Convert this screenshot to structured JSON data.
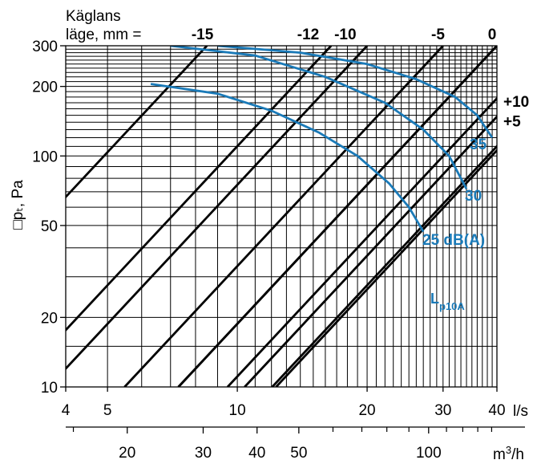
{
  "chart_data": {
    "type": "line",
    "axis_scale": "log-log",
    "grid": true,
    "header_label_line1": "Käglans",
    "header_label_line2": "läge, mm =",
    "ylabel": "□pₜ, Pa",
    "xunit_top": "l/s",
    "xunit_bottom": "m³/h",
    "y_range": [
      10,
      300
    ],
    "x_range_ls": [
      4,
      40
    ],
    "x_range_m3h": [
      14.4,
      144
    ],
    "y_ticks": [
      10,
      20,
      50,
      100,
      200,
      300
    ],
    "y_tick_labels": [
      "10",
      "20",
      "50",
      "100",
      "200",
      "300"
    ],
    "x_ticks_ls": [
      4,
      5,
      10,
      20,
      30,
      40
    ],
    "x_tick_labels_ls": [
      "4",
      "5",
      "10",
      "20",
      "30",
      "40"
    ],
    "x_ticks_m3h": [
      20,
      30,
      40,
      50,
      100
    ],
    "x_tick_labels_m3h": [
      "20",
      "30",
      "40",
      "50",
      "100"
    ],
    "cone_positions": [
      {
        "label": "-15",
        "flow_at_300pa": 8.5
      },
      {
        "label": "-12",
        "flow_at_300pa": 16.5
      },
      {
        "label": "-10",
        "flow_at_300pa": 20.0
      },
      {
        "label": "-5",
        "flow_at_300pa": 30.0
      },
      {
        "label": "0",
        "flow_at_300pa": 40.0
      },
      {
        "label": "+5",
        "flow_at_300pa": 52.0
      },
      {
        "label": "+10",
        "flow_at_300pa": 66.0
      }
    ],
    "extra_lines_at_10pa": [
      7.3,
      10.4,
      12.3
    ],
    "sound_curves": [
      {
        "label": "35",
        "points": [
          [
            9.0,
            300
          ],
          [
            14.0,
            280
          ],
          [
            20.0,
            250
          ],
          [
            26.0,
            215
          ],
          [
            32.0,
            180
          ],
          [
            36.0,
            150
          ],
          [
            39.0,
            120
          ]
        ]
      },
      {
        "label": "30",
        "points": [
          [
            7.0,
            300
          ],
          [
            11.0,
            272
          ],
          [
            16.0,
            220
          ],
          [
            22.0,
            170
          ],
          [
            27.0,
            130
          ],
          [
            31.0,
            100
          ],
          [
            34.0,
            72
          ]
        ]
      },
      {
        "label": "25 dB(A)",
        "points": [
          [
            6.3,
            205
          ],
          [
            9.0,
            186
          ],
          [
            12.0,
            157
          ],
          [
            15.5,
            126
          ],
          [
            19.0,
            100
          ],
          [
            22.5,
            76
          ],
          [
            25.0,
            60
          ],
          [
            27.0,
            47
          ]
        ]
      }
    ],
    "annotation": "Lp10A",
    "annotation_main": "L",
    "annotation_sub": "p10A",
    "colors": {
      "lines": "#000000",
      "sound_curves": "#1a7ab8",
      "grid": "#000000"
    }
  }
}
